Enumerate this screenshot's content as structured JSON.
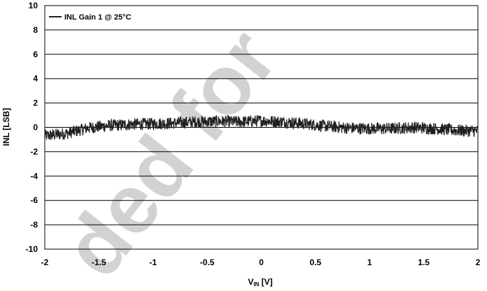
{
  "chart_data": {
    "type": "line",
    "title": "",
    "xlabel_main": "V",
    "xlabel_sub": "IN",
    "xlabel_unit": " [V]",
    "ylabel": "INL [LSB]",
    "xlim": [
      -2,
      2
    ],
    "ylim": [
      -10,
      10
    ],
    "x_ticks": [
      -2,
      -1.5,
      -1,
      -0.5,
      0,
      0.5,
      1,
      1.5,
      2
    ],
    "x_tick_labels": [
      "-2",
      "-1.5",
      "-1",
      "-0.5",
      "0",
      "0.5",
      "1",
      "1.5",
      "2"
    ],
    "y_ticks": [
      10,
      8,
      6,
      4,
      2,
      0,
      -2,
      -4,
      -6,
      -8,
      -10
    ],
    "y_tick_labels": [
      "10",
      "8",
      "6",
      "4",
      "2",
      "0",
      "-2",
      "-4",
      "-6",
      "-8",
      "-10"
    ],
    "grid": "horizontal",
    "legend_position": "top-left",
    "series": [
      {
        "name": "INL Gain 1 @ 25°C",
        "color": "#231f20",
        "noise_band_lsb": 0.5,
        "x": [
          -2.0,
          -1.8,
          -1.6,
          -1.4,
          -1.2,
          -1.0,
          -0.8,
          -0.6,
          -0.4,
          -0.2,
          0.0,
          0.2,
          0.4,
          0.6,
          0.8,
          1.0,
          1.2,
          1.4,
          1.6,
          1.8,
          2.0
        ],
        "mean": [
          -0.7,
          -0.5,
          -0.05,
          0.15,
          0.25,
          0.3,
          0.35,
          0.45,
          0.5,
          0.45,
          0.55,
          0.45,
          0.3,
          0.1,
          -0.05,
          -0.1,
          -0.1,
          0.0,
          -0.1,
          -0.25,
          -0.3
        ]
      }
    ]
  },
  "watermark": "ded for",
  "colors": {
    "line": "#231f20",
    "grid": "#000000",
    "watermark": "#c8c8c8"
  }
}
